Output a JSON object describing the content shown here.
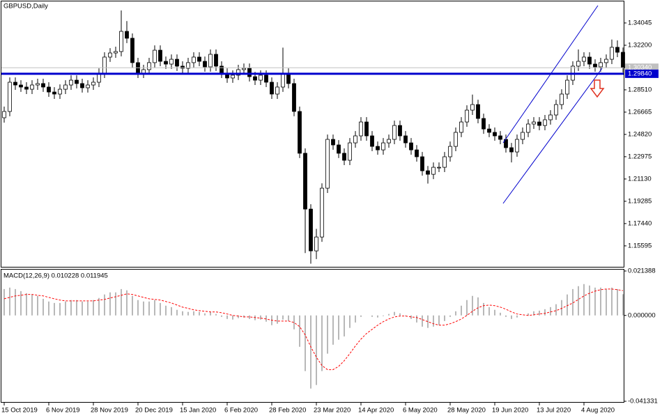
{
  "chart_data": [
    {
      "type": "candlestick",
      "title": "GBPUSD,Daily",
      "ylim": [
        1.1386,
        1.3583
      ],
      "yticks": [
        1.34045,
        {
          "value": 1.322,
          "label": "1.32200"
        },
        1.30355,
        {
          "value": 1.2851,
          "label": "1.28510"
        },
        1.26665,
        {
          "value": 1.2482,
          "label": "1.24820"
        },
        1.22975,
        {
          "value": 1.2113,
          "label": "1.21130"
        },
        1.19285,
        {
          "value": 1.1744,
          "label": "1.17440"
        },
        1.15595
      ],
      "xticks": [
        {
          "value": 0,
          "label": "15 Oct 2019"
        },
        {
          "value": 8,
          "label": "6 Nov 2019"
        },
        {
          "value": 16,
          "label": "28 Nov 2019"
        },
        {
          "value": 24,
          "label": "20 Dec 2019"
        },
        {
          "value": 32,
          "label": "15 Jan 2020"
        },
        {
          "value": 40,
          "label": "6 Feb 2020"
        },
        {
          "value": 48,
          "label": "28 Feb 2020"
        },
        {
          "value": 56,
          "label": "23 Mar 2020"
        },
        {
          "value": 64,
          "label": "14 Apr 2020"
        },
        {
          "value": 72,
          "label": "6 May 2020"
        },
        {
          "value": 80,
          "label": "28 May 2020"
        },
        {
          "value": 88,
          "label": "19 Jun 2020"
        },
        {
          "value": 96,
          "label": "13 Jul 2020"
        },
        {
          "value": 104,
          "label": "4 Aug 2020"
        }
      ],
      "color": "#000000",
      "up_color": "#ffffff",
      "down_color": "#000000",
      "level": {
        "value": 1.2984,
        "label": "1.29840",
        "color": "#0000cd"
      },
      "current_price": {
        "value": 1.3034,
        "label": "1.30340",
        "color": "#c0c0c0"
      },
      "open": [
        1.262,
        1.2672,
        1.2914,
        1.2891,
        1.2874,
        1.2856,
        1.2891,
        1.2903,
        1.2874,
        1.2833,
        1.2816,
        1.2856,
        1.2891,
        1.2931,
        1.2903,
        1.2868,
        1.2891,
        1.2914,
        1.2989,
        1.3122,
        1.3156,
        1.3168,
        1.3335,
        1.3278,
        1.3076,
        1.2989,
        1.3018,
        1.3076,
        1.3179,
        1.3087,
        1.3064,
        1.3104,
        1.3047,
        1.3029,
        1.3076,
        1.3122,
        1.3087,
        1.3041,
        1.3145,
        1.3047,
        1.2989,
        1.2949,
        1.2972,
        1.3018,
        1.3029,
        1.296,
        1.2931,
        1.2972,
        1.2914,
        1.2816,
        1.2874,
        1.2989,
        1.2903,
        1.2672,
        1.2326,
        1.1864,
        1.1518,
        1.1633,
        1.2037,
        1.2441,
        1.2395,
        1.2326,
        1.2268,
        1.2412,
        1.247,
        1.2585,
        1.247,
        1.2383,
        1.2354,
        1.2412,
        1.2441,
        1.2556,
        1.247,
        1.2412,
        1.2354,
        1.2297,
        1.2181,
        1.2152,
        1.221,
        1.221,
        1.2297,
        1.2383,
        1.2499,
        1.2585,
        1.2683,
        1.2729,
        1.2614,
        1.2527,
        1.2499,
        1.247,
        1.2441,
        1.2372,
        1.2337,
        1.2441,
        1.2499,
        1.2568,
        1.2585,
        1.2556,
        1.2603,
        1.2643,
        1.2729,
        1.2816,
        1.2931,
        1.3047,
        1.3087,
        1.3122,
        1.3064,
        1.3041,
        1.3076,
        1.3104,
        1.3203,
        1.3162
      ],
      "high": [
        1.2712,
        1.2954,
        1.2954,
        1.2931,
        1.2914,
        1.2931,
        1.2943,
        1.2943,
        1.2914,
        1.2873,
        1.2896,
        1.2931,
        1.2971,
        1.2971,
        1.2943,
        1.2931,
        1.2954,
        1.3029,
        1.3162,
        1.3196,
        1.3208,
        1.3508,
        1.342,
        1.3318,
        1.3116,
        1.3058,
        1.3116,
        1.3219,
        1.3219,
        1.3127,
        1.3144,
        1.3144,
        1.3087,
        1.3116,
        1.3162,
        1.3162,
        1.3127,
        1.3185,
        1.3185,
        1.3087,
        1.3029,
        1.3012,
        1.3058,
        1.3069,
        1.3069,
        1.3,
        1.3012,
        1.3012,
        1.2954,
        1.2914,
        1.32,
        1.3029,
        1.2943,
        1.2712,
        1.2366,
        1.1904,
        1.17,
        1.2077,
        1.2481,
        1.2481,
        1.2435,
        1.2366,
        1.2452,
        1.251,
        1.2625,
        1.2625,
        1.251,
        1.2423,
        1.2452,
        1.2481,
        1.2596,
        1.2596,
        1.251,
        1.2452,
        1.2394,
        1.2337,
        1.2221,
        1.225,
        1.225,
        1.2337,
        1.2423,
        1.2539,
        1.2625,
        1.2723,
        1.2812,
        1.2769,
        1.2654,
        1.2567,
        1.2539,
        1.251,
        1.2481,
        1.2412,
        1.2481,
        1.2539,
        1.2608,
        1.2625,
        1.2625,
        1.2643,
        1.2683,
        1.2769,
        1.2856,
        1.2971,
        1.3087,
        1.3185,
        1.3162,
        1.3162,
        1.3104,
        1.3116,
        1.3144,
        1.3267,
        1.326,
        1.3202
      ],
      "low": [
        1.258,
        1.2632,
        1.2851,
        1.2834,
        1.2816,
        1.2816,
        1.2851,
        1.2834,
        1.2793,
        1.2776,
        1.2776,
        1.2816,
        1.2851,
        1.2863,
        1.2828,
        1.2828,
        1.2851,
        1.2874,
        1.2949,
        1.3082,
        1.3116,
        1.3128,
        1.3238,
        1.3036,
        1.2949,
        1.2949,
        1.2978,
        1.3036,
        1.3047,
        1.3024,
        1.3024,
        1.3007,
        1.2989,
        1.2989,
        1.3036,
        1.3047,
        1.3001,
        1.3001,
        1.3007,
        1.2949,
        1.2909,
        1.2909,
        1.2932,
        1.2978,
        1.292,
        1.2891,
        1.2891,
        1.2874,
        1.2776,
        1.2776,
        1.2834,
        1.2863,
        1.2632,
        1.2286,
        1.15,
        1.1412,
        1.145,
        1.1593,
        1.1997,
        1.2355,
        1.2286,
        1.2228,
        1.2228,
        1.2372,
        1.243,
        1.243,
        1.2343,
        1.2314,
        1.2314,
        1.2372,
        1.2401,
        1.243,
        1.2372,
        1.2314,
        1.2257,
        1.2141,
        1.2075,
        1.2112,
        1.217,
        1.217,
        1.2257,
        1.2343,
        1.2459,
        1.2545,
        1.2643,
        1.2574,
        1.2487,
        1.2459,
        1.243,
        1.2401,
        1.2332,
        1.225,
        1.2297,
        1.2401,
        1.2459,
        1.2528,
        1.2516,
        1.2516,
        1.2563,
        1.2603,
        1.2689,
        1.2776,
        1.2891,
        1.3007,
        1.3047,
        1.3024,
        1.3001,
        1.3001,
        1.3036,
        1.3064,
        1.3122,
        1.2994
      ],
      "close": [
        1.2672,
        1.2914,
        1.2891,
        1.2874,
        1.2856,
        1.2891,
        1.2903,
        1.2874,
        1.2833,
        1.2816,
        1.2856,
        1.2891,
        1.2931,
        1.2903,
        1.2868,
        1.2891,
        1.2914,
        1.2989,
        1.3122,
        1.3156,
        1.3168,
        1.3335,
        1.3278,
        1.3076,
        1.2989,
        1.3018,
        1.3076,
        1.3179,
        1.3087,
        1.3064,
        1.3104,
        1.3047,
        1.3029,
        1.3076,
        1.3122,
        1.3087,
        1.3041,
        1.3145,
        1.3047,
        1.2989,
        1.2949,
        1.2972,
        1.3018,
        1.3029,
        1.296,
        1.2931,
        1.2972,
        1.2914,
        1.2816,
        1.2874,
        1.2989,
        1.2903,
        1.2672,
        1.2326,
        1.1864,
        1.1518,
        1.1633,
        1.2037,
        1.2441,
        1.2395,
        1.2326,
        1.2268,
        1.2412,
        1.247,
        1.2585,
        1.247,
        1.2383,
        1.2354,
        1.2412,
        1.2441,
        1.2556,
        1.247,
        1.2412,
        1.2354,
        1.2297,
        1.2181,
        1.2152,
        1.221,
        1.221,
        1.2297,
        1.2383,
        1.2499,
        1.2585,
        1.2683,
        1.2729,
        1.2614,
        1.2527,
        1.2499,
        1.247,
        1.2441,
        1.2372,
        1.2337,
        1.2441,
        1.2499,
        1.2568,
        1.2585,
        1.2556,
        1.2603,
        1.2643,
        1.2729,
        1.2816,
        1.2931,
        1.3047,
        1.3087,
        1.3122,
        1.3064,
        1.3041,
        1.3076,
        1.3104,
        1.3203,
        1.3162,
        1.3034
      ]
    },
    {
      "type": "macd",
      "title": "MACD(12,26,9) 0.010228 0.011945",
      "ylim": [
        -0.041331,
        0.021388
      ],
      "yticks": [
        0.021388,
        {
          "value": 0,
          "label": "0.000000"
        },
        -0.041331
      ],
      "color": "#a0a0a0",
      "signal_color": "#ff0000",
      "values": [
        0.0127,
        0.0134,
        0.0127,
        0.0117,
        0.0107,
        0.0101,
        0.0094,
        0.008,
        0.0067,
        0.006,
        0.006,
        0.0067,
        0.0074,
        0.0074,
        0.0067,
        0.0067,
        0.0074,
        0.0084,
        0.0101,
        0.0111,
        0.0111,
        0.0127,
        0.0121,
        0.0094,
        0.0074,
        0.0067,
        0.0067,
        0.0074,
        0.006,
        0.0047,
        0.004,
        0.0027,
        0.002,
        0.0017,
        0.002,
        0.0017,
        0.001,
        0.0017,
        0.0007,
        -0.0007,
        -0.0017,
        -0.002,
        -0.0013,
        -0.001,
        -0.0017,
        -0.0023,
        -0.002,
        -0.003,
        -0.0047,
        -0.004,
        -0.002,
        -0.0027,
        -0.0067,
        -0.0151,
        -0.0268,
        -0.0352,
        -0.0335,
        -0.0268,
        -0.0184,
        -0.0141,
        -0.0117,
        -0.0101,
        -0.006,
        -0.0034,
        -0.0007,
        0,
        -0.0007,
        -0.001,
        -0.0003,
        0.0007,
        0.0017,
        0.001,
        -0.0003,
        -0.0017,
        -0.0034,
        -0.0054,
        -0.006,
        -0.0054,
        -0.0047,
        -0.0027,
        -0.0007,
        0.002,
        0.0047,
        0.0074,
        0.0094,
        0.0087,
        0.006,
        0.004,
        0.0027,
        0.0013,
        -0.0007,
        -0.0017,
        -0.001,
        0,
        0.001,
        0.002,
        0.0023,
        0.003,
        0.004,
        0.0054,
        0.0074,
        0.0101,
        0.0127,
        0.0141,
        0.0151,
        0.0144,
        0.0134,
        0.0134,
        0.0127,
        0.0134,
        0.0127,
        0.010228
      ],
      "signal": [
        0.008,
        0.0087,
        0.0094,
        0.0097,
        0.0101,
        0.0101,
        0.0097,
        0.0094,
        0.0087,
        0.008,
        0.0074,
        0.007,
        0.007,
        0.007,
        0.007,
        0.007,
        0.007,
        0.0074,
        0.0077,
        0.0084,
        0.009,
        0.0097,
        0.0104,
        0.0101,
        0.0094,
        0.0087,
        0.008,
        0.0077,
        0.0074,
        0.0067,
        0.006,
        0.005,
        0.004,
        0.0034,
        0.0027,
        0.0023,
        0.002,
        0.0017,
        0.0017,
        0.0013,
        0.0007,
        0,
        -0.0003,
        -0.0007,
        -0.0007,
        -0.001,
        -0.0013,
        -0.0017,
        -0.0023,
        -0.0027,
        -0.0027,
        -0.0027,
        -0.0034,
        -0.0054,
        -0.0094,
        -0.0151,
        -0.0201,
        -0.0241,
        -0.0261,
        -0.0261,
        -0.0245,
        -0.0218,
        -0.0184,
        -0.0147,
        -0.0114,
        -0.0087,
        -0.0067,
        -0.0047,
        -0.003,
        -0.0017,
        -0.0007,
        -0.0003,
        -0.0003,
        -0.0007,
        -0.001,
        -0.002,
        -0.003,
        -0.004,
        -0.0047,
        -0.0047,
        -0.004,
        -0.003,
        -0.0017,
        0,
        0.002,
        0.0037,
        0.0047,
        0.005,
        0.0047,
        0.004,
        0.003,
        0.0017,
        0.0007,
        0.0003,
        0,
        0.0003,
        0.0007,
        0.001,
        0.0017,
        0.0023,
        0.0034,
        0.0047,
        0.006,
        0.0077,
        0.0094,
        0.0107,
        0.0117,
        0.0124,
        0.0127,
        0.0127,
        0.0124,
        0.011945
      ]
    }
  ]
}
